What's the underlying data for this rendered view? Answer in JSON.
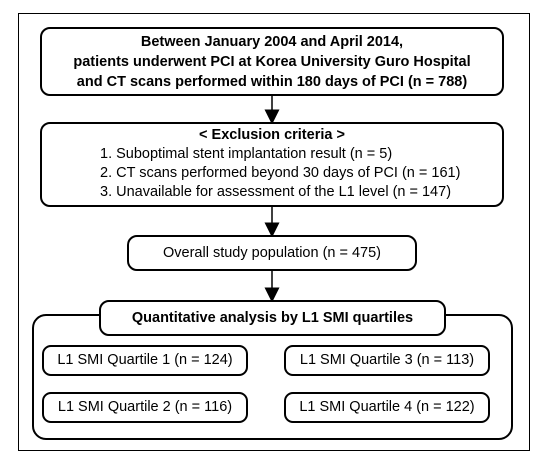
{
  "top_box": {
    "lines": [
      "Between January 2004 and April 2014,",
      "patients underwent PCI at Korea University Guro Hospital",
      "and CT scans performed within 180 days of PCI (n = 788)"
    ]
  },
  "exclusion_box": {
    "title": "< Exclusion criteria >",
    "items": [
      "1. Suboptimal stent implantation result (n = 5)",
      "2. CT scans performed beyond 30 days of PCI (n = 161)",
      "3. Unavailable for assessment of the L1 level (n = 147)"
    ]
  },
  "population_box": {
    "label": "Overall study population (n = 475)"
  },
  "quantitative_box": {
    "label": "Quantitative analysis by L1 SMI quartiles"
  },
  "quartiles": {
    "q1": "L1 SMI Quartile 1 (n = 124)",
    "q2": "L1 SMI Quartile 2 (n = 116)",
    "q3": "L1 SMI Quartile 3 (n = 113)",
    "q4": "L1 SMI Quartile 4 (n = 122)"
  }
}
